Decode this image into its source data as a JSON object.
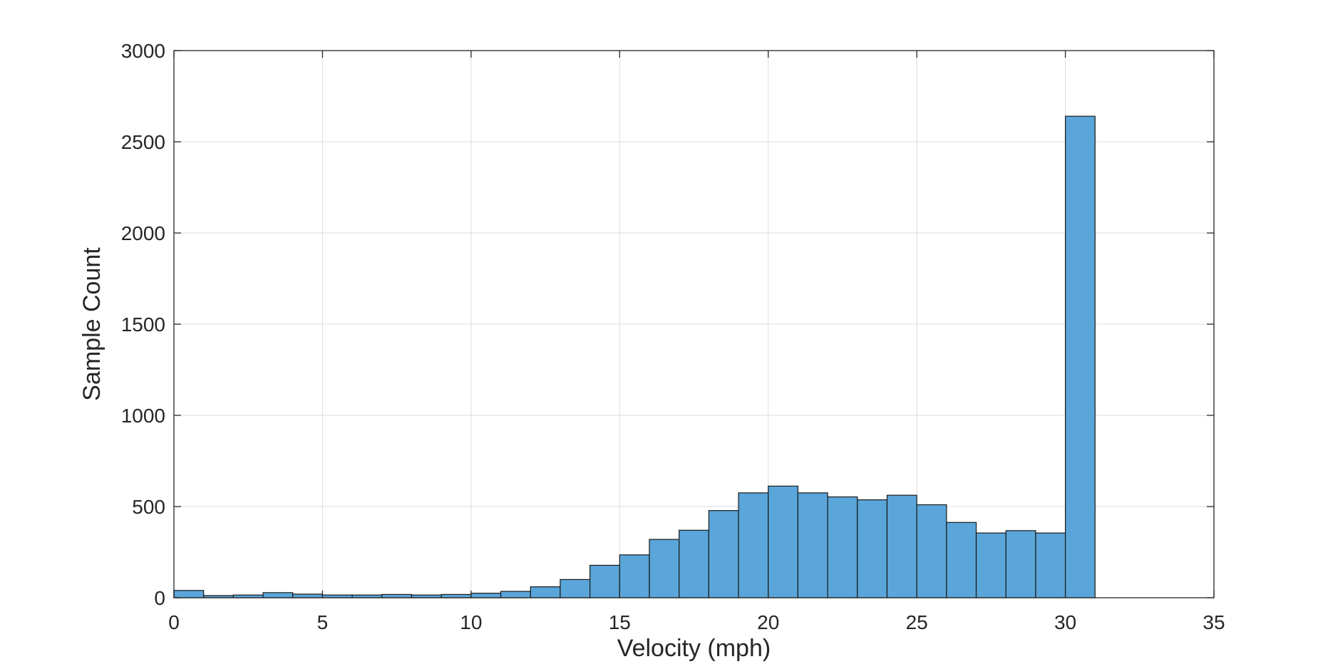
{
  "chart_data": {
    "type": "bar",
    "xlabel": "Velocity (mph)",
    "ylabel": "Sample Count",
    "xlim": [
      0,
      35
    ],
    "ylim": [
      0,
      3000
    ],
    "xticks": [
      0,
      5,
      10,
      15,
      20,
      25,
      30,
      35
    ],
    "yticks": [
      0,
      500,
      1000,
      1500,
      2000,
      2500,
      3000
    ],
    "grid": true,
    "bar_color": "#5aa5d9",
    "edge_color": "#1a1a1a",
    "bins": [
      {
        "x0": 0,
        "x1": 1,
        "value": 40
      },
      {
        "x0": 1,
        "x1": 2,
        "value": 12
      },
      {
        "x0": 2,
        "x1": 3,
        "value": 15
      },
      {
        "x0": 3,
        "x1": 4,
        "value": 28
      },
      {
        "x0": 4,
        "x1": 5,
        "value": 20
      },
      {
        "x0": 5,
        "x1": 6,
        "value": 15
      },
      {
        "x0": 6,
        "x1": 7,
        "value": 15
      },
      {
        "x0": 7,
        "x1": 8,
        "value": 18
      },
      {
        "x0": 8,
        "x1": 9,
        "value": 15
      },
      {
        "x0": 9,
        "x1": 10,
        "value": 18
      },
      {
        "x0": 10,
        "x1": 11,
        "value": 25
      },
      {
        "x0": 11,
        "x1": 12,
        "value": 35
      },
      {
        "x0": 12,
        "x1": 13,
        "value": 60
      },
      {
        "x0": 13,
        "x1": 14,
        "value": 100
      },
      {
        "x0": 14,
        "x1": 15,
        "value": 178
      },
      {
        "x0": 15,
        "x1": 16,
        "value": 235
      },
      {
        "x0": 16,
        "x1": 17,
        "value": 320
      },
      {
        "x0": 17,
        "x1": 18,
        "value": 370
      },
      {
        "x0": 18,
        "x1": 19,
        "value": 478
      },
      {
        "x0": 19,
        "x1": 20,
        "value": 575
      },
      {
        "x0": 20,
        "x1": 21,
        "value": 612
      },
      {
        "x0": 21,
        "x1": 22,
        "value": 575
      },
      {
        "x0": 22,
        "x1": 23,
        "value": 553
      },
      {
        "x0": 23,
        "x1": 24,
        "value": 537
      },
      {
        "x0": 24,
        "x1": 25,
        "value": 562
      },
      {
        "x0": 25,
        "x1": 26,
        "value": 510
      },
      {
        "x0": 26,
        "x1": 27,
        "value": 413
      },
      {
        "x0": 27,
        "x1": 28,
        "value": 355
      },
      {
        "x0": 28,
        "x1": 29,
        "value": 368
      },
      {
        "x0": 29,
        "x1": 30,
        "value": 355
      },
      {
        "x0": 30,
        "x1": 31,
        "value": 2640
      }
    ]
  }
}
